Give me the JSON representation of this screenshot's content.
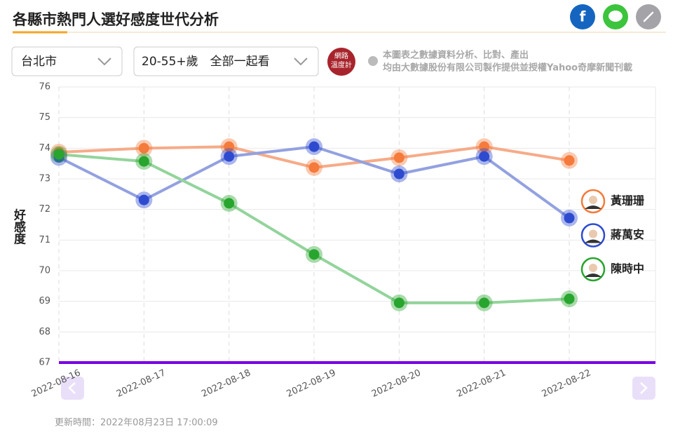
{
  "chart_data": {
    "type": "line",
    "title": "各縣市熱門人選好感度世代分析",
    "y_label": "好感度",
    "categories": [
      "2022-08-16",
      "2022-08-17",
      "2022-08-18",
      "2022-08-19",
      "2022-08-20",
      "2022-08-21",
      "2022-08-22"
    ],
    "series": [
      {
        "name": "黃珊珊",
        "color": "#f47b3b",
        "line_color": "#f6ab88",
        "values": [
          73.87,
          74.0,
          74.05,
          73.37,
          73.69,
          74.05,
          73.6
        ]
      },
      {
        "name": "蔣萬安",
        "color": "#2e4bd0",
        "line_color": "#93a1e0",
        "values": [
          73.7,
          72.31,
          73.73,
          74.05,
          73.16,
          73.73,
          71.72
        ]
      },
      {
        "name": "陳時中",
        "color": "#28a52e",
        "line_color": "#93d49b",
        "values": [
          73.8,
          73.57,
          72.2,
          70.53,
          68.95,
          68.95,
          69.08
        ]
      }
    ],
    "ylim": [
      67,
      76
    ],
    "yticks": [
      67,
      68,
      69,
      70,
      71,
      72,
      73,
      74,
      75,
      76
    ],
    "grid": true
  },
  "ui": {
    "dropdowns": [
      "台北市",
      "20-55+歲　全部一起看"
    ],
    "logo": [
      "網路",
      "溫度計"
    ],
    "disclaimer": [
      "本圖表之數據資料分析、比對、產出",
      "均由大數據股份有限公司製作提供並授權Yahoo奇摩新聞刊載"
    ],
    "updated": "更新時間：2022年08月23日 17:00:09"
  }
}
